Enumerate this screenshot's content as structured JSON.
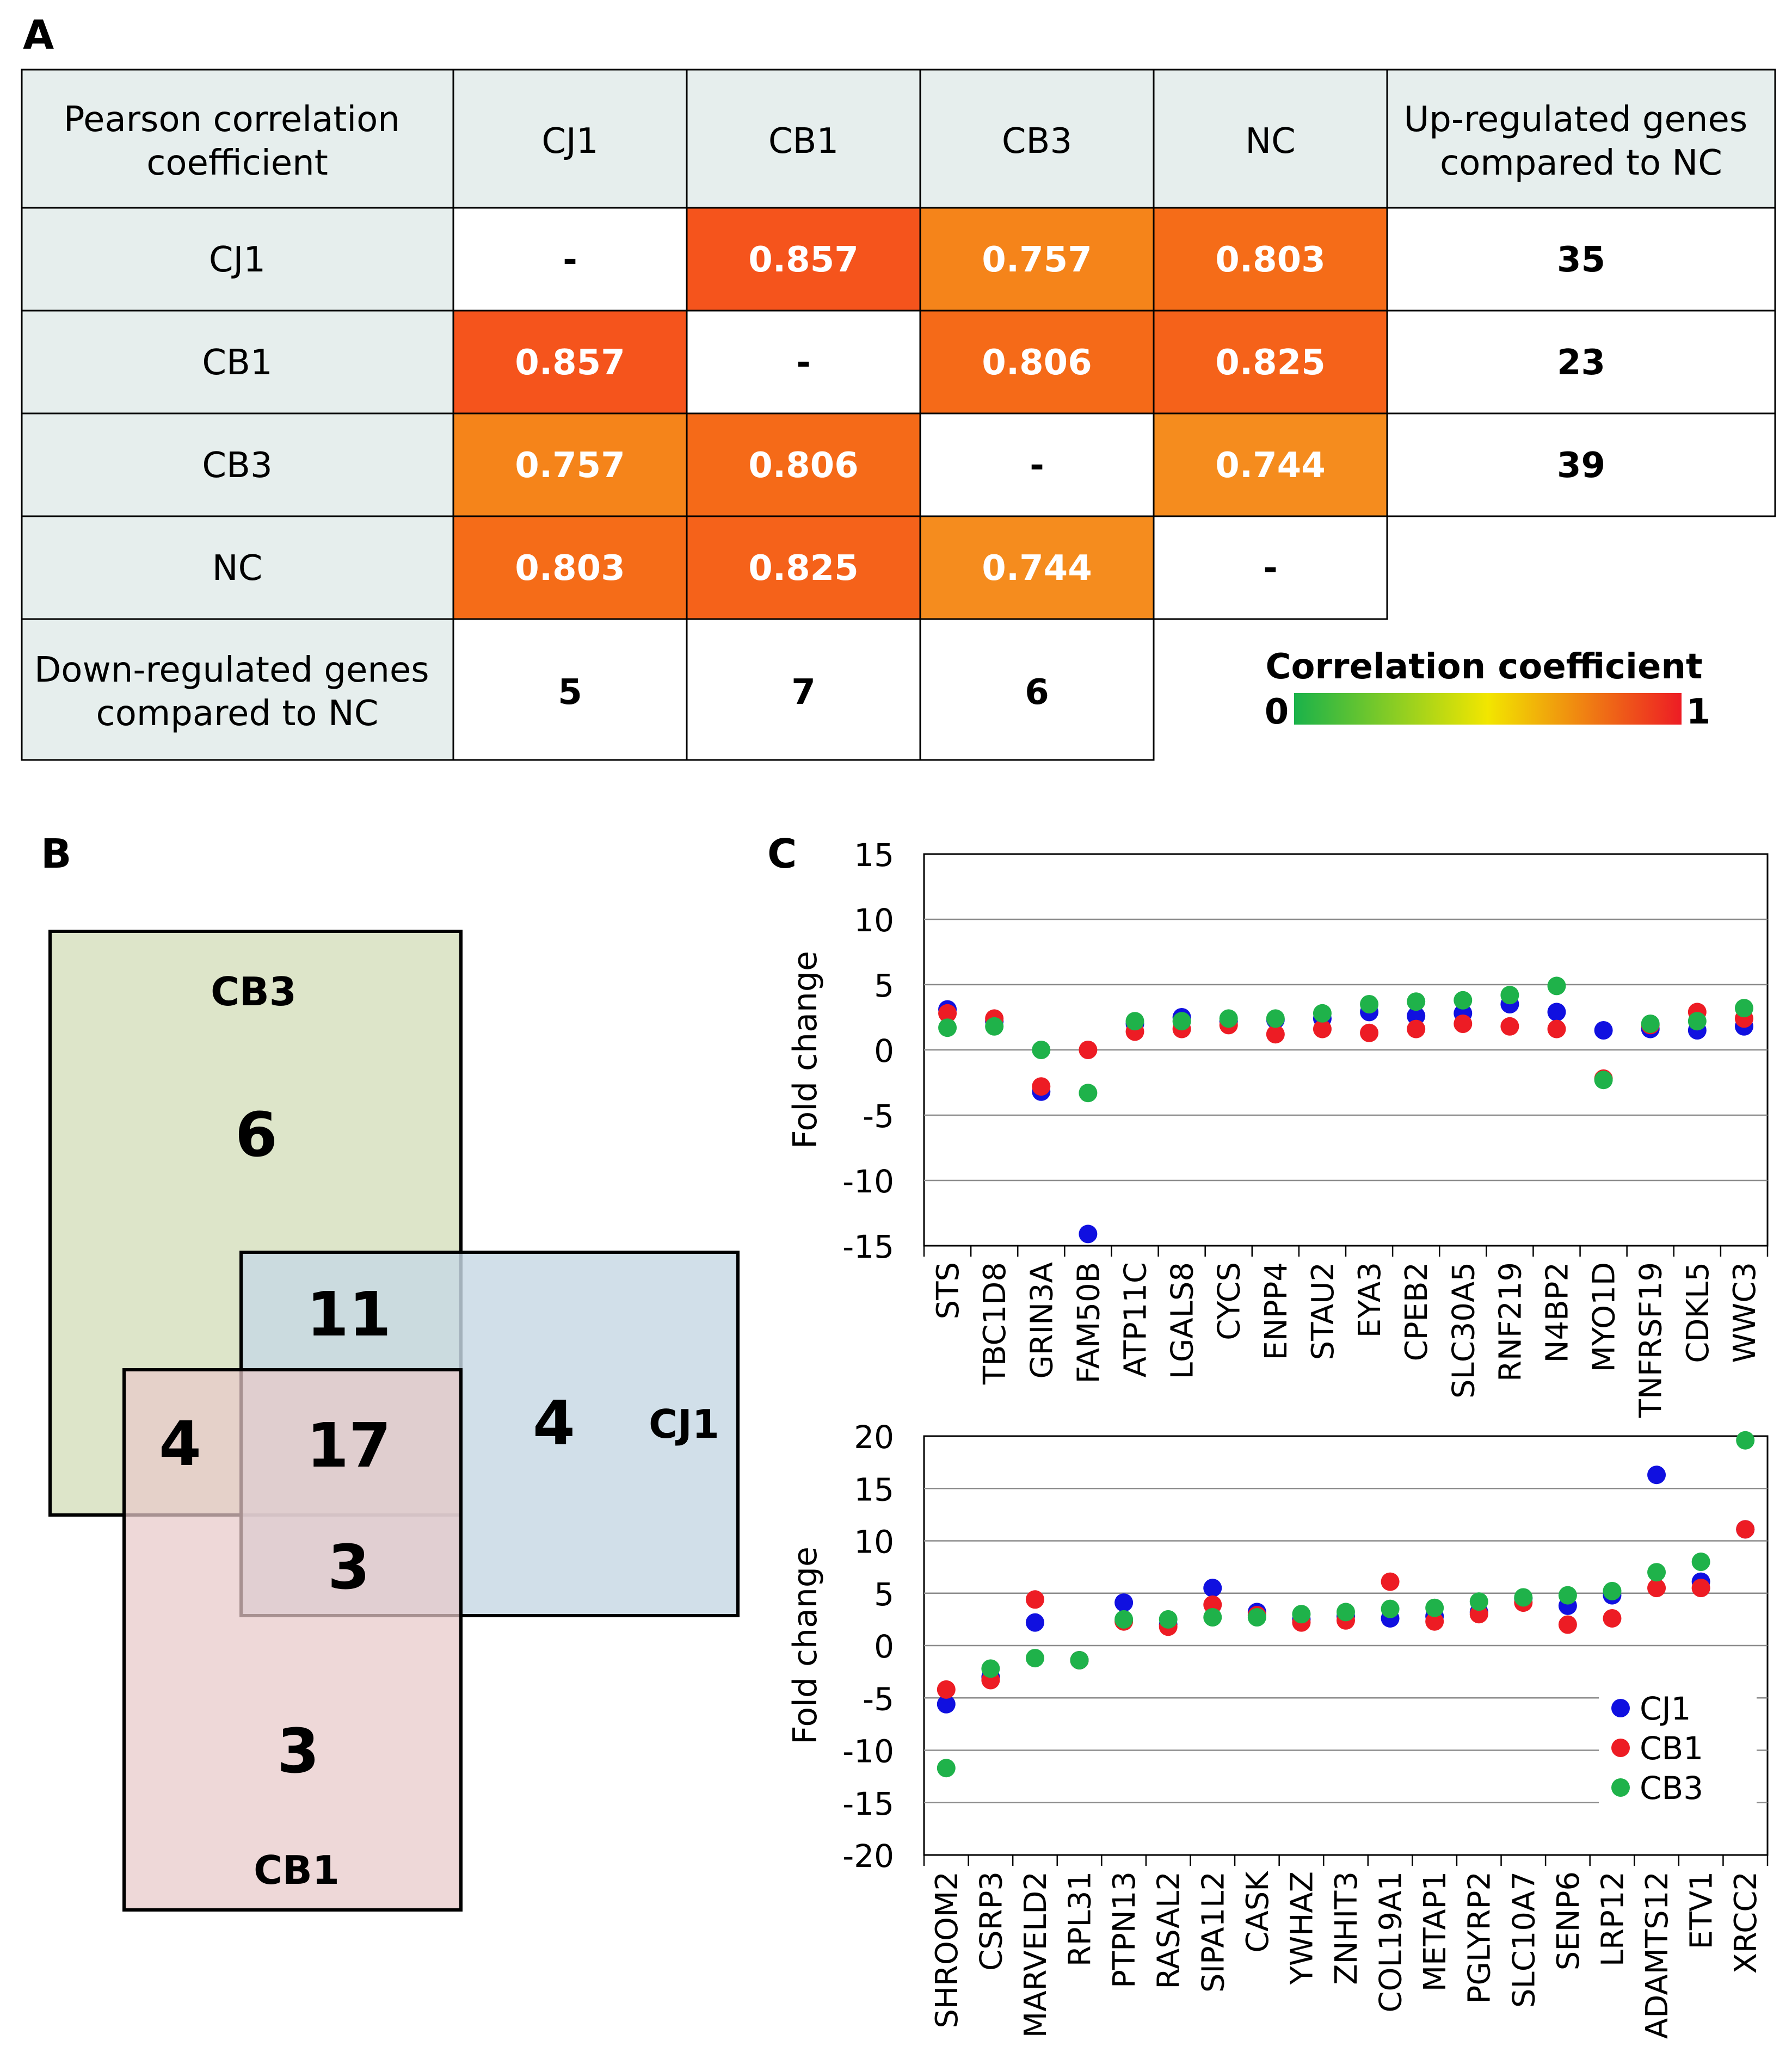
{
  "panel_labels": {
    "a": "A",
    "b": "B",
    "c": "C"
  },
  "table": {
    "corner_header": [
      "Pearson correlation",
      "coefficient"
    ],
    "columns": [
      "CJ1",
      "CB1",
      "CB3",
      "NC"
    ],
    "up_header": [
      "Up-regulated genes",
      "compared to NC"
    ],
    "rows": [
      {
        "label": "CJ1",
        "cells": [
          "-",
          "0.857",
          "0.757",
          "0.803"
        ],
        "up": "35"
      },
      {
        "label": "CB1",
        "cells": [
          "0.857",
          "-",
          "0.806",
          "0.825"
        ],
        "up": "23"
      },
      {
        "label": "CB3",
        "cells": [
          "0.757",
          "0.806",
          "-",
          "0.744"
        ],
        "up": "39"
      },
      {
        "label": "NC",
        "cells": [
          "0.803",
          "0.825",
          "0.744",
          "-"
        ]
      }
    ],
    "down_header": [
      "Down-regulated genes",
      "compared to NC"
    ],
    "down_values": [
      "5",
      "7",
      "6"
    ],
    "cell_colors": {
      "0.857": "#f5541c",
      "0.825": "#f5621a",
      "0.806": "#f56a18",
      "0.803": "#f56c18",
      "0.757": "#f5841a",
      "0.744": "#f58c1e"
    },
    "header_bg": "#e6eeed"
  },
  "scale": {
    "title": "Correlation coefficient",
    "min_label": "0",
    "max_label": "1",
    "colors": [
      "#1ab24a",
      "#f2e600",
      "#ed1c24"
    ]
  },
  "venn": {
    "sets": [
      {
        "name": "CB3",
        "color": "#dbe4c6"
      },
      {
        "name": "CJ1",
        "color": "#c7d8e4"
      },
      {
        "name": "CB1",
        "color": "#e7c9c9"
      }
    ],
    "regions": {
      "cb3_only": "6",
      "cj1_only": "4",
      "cb1_only": "3",
      "cb3_cj1": "11",
      "cb3_cb1": "4",
      "all": "17",
      "cj1_cb1": "3"
    }
  },
  "chart_data": [
    {
      "type": "scatter",
      "title": "",
      "xlabel": "",
      "ylabel": "Fold change",
      "ylim": [
        -15,
        15
      ],
      "yticks": [
        -15,
        -10,
        -5,
        0,
        5,
        10,
        15
      ],
      "grid": true,
      "categories": [
        "STS",
        "TBC1D8",
        "GRIN3A",
        "FAM50B",
        "ATP11C",
        "LGALS8",
        "CYCS",
        "ENPP4",
        "STAU2",
        "EYA3",
        "CPEB2",
        "SLC30A5",
        "RNF219",
        "N4BP2",
        "MYO1D",
        "TNFRSF19",
        "CDKL5",
        "WWC3"
      ],
      "series": [
        {
          "name": "CJ1",
          "color": "#1010e0",
          "values": [
            3.1,
            2.2,
            -3.2,
            -14.1,
            2.0,
            2.5,
            2.2,
            2.3,
            2.4,
            2.9,
            2.6,
            2.8,
            3.5,
            2.9,
            1.5,
            1.6,
            1.5,
            1.8
          ]
        },
        {
          "name": "CB1",
          "color": "#ed1c24",
          "values": [
            2.8,
            2.4,
            -2.8,
            0.0,
            1.4,
            1.6,
            1.9,
            1.2,
            1.6,
            1.3,
            1.6,
            2.0,
            1.8,
            1.6,
            -2.2,
            1.9,
            2.9,
            2.4
          ]
        },
        {
          "name": "CB3",
          "color": "#1fb24a",
          "values": [
            1.7,
            1.8,
            0.0,
            -3.3,
            2.2,
            2.2,
            2.4,
            2.4,
            2.8,
            3.5,
            3.7,
            3.8,
            4.2,
            4.9,
            -2.3,
            2.0,
            2.2,
            3.2
          ]
        }
      ]
    },
    {
      "type": "scatter",
      "title": "",
      "xlabel": "",
      "ylabel": "Fold change",
      "ylim": [
        -20,
        20
      ],
      "yticks": [
        -20,
        -15,
        -10,
        -5,
        0,
        5,
        10,
        15,
        20
      ],
      "grid": true,
      "legend": "bottom-right",
      "categories": [
        "SHROOM2",
        "CSRP3",
        "MARVELD2",
        "RPL31",
        "PTPN13",
        "RASAL2",
        "SIPA1L2",
        "CASK",
        "YWHAZ",
        "ZNHIT3",
        "COL19A1",
        "METAP1",
        "PGLYRP2",
        "SLC10A7",
        "SENP6",
        "LRP12",
        "ADAMTS12",
        "ETV1",
        "XRCC2"
      ],
      "series": [
        {
          "name": "CJ1",
          "color": "#1010e0",
          "values": [
            -5.6,
            -3.0,
            2.2,
            -1.4,
            4.1,
            2.0,
            5.5,
            3.2,
            2.5,
            2.8,
            2.6,
            2.8,
            3.2,
            4.5,
            3.8,
            4.8,
            16.3,
            6.1,
            11.1
          ]
        },
        {
          "name": "CB1",
          "color": "#ed1c24",
          "values": [
            -4.2,
            -3.3,
            4.4,
            -1.4,
            2.3,
            1.8,
            3.9,
            2.9,
            2.2,
            2.4,
            6.1,
            2.3,
            3.0,
            4.1,
            2.0,
            2.6,
            5.5,
            5.5,
            11.1
          ]
        },
        {
          "name": "CB3",
          "color": "#1fb24a",
          "values": [
            -11.7,
            -2.2,
            -1.2,
            -1.4,
            2.5,
            2.5,
            2.7,
            2.7,
            3.0,
            3.2,
            3.5,
            3.6,
            4.2,
            4.6,
            4.8,
            5.2,
            7.0,
            8.0,
            19.6
          ]
        }
      ]
    }
  ]
}
